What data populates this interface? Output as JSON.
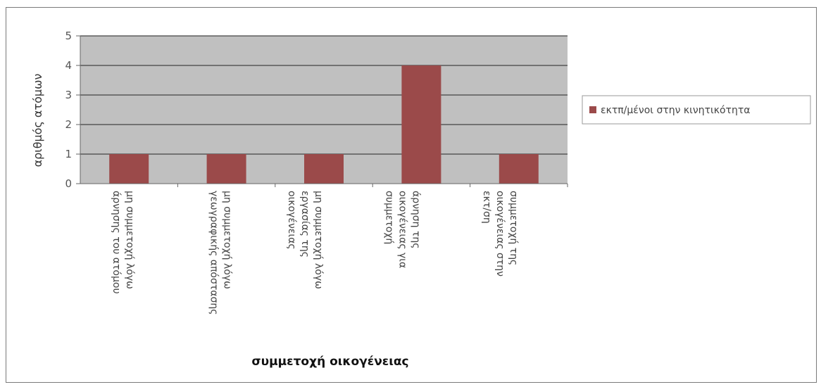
{
  "chart_data": {
    "type": "bar",
    "categories": [
      [
        "μη συμμετοχή λόγω",
        "άρνησης του ατόμου"
      ],
      [
        "μη συμμετοχή λόγω",
        "γεωγραφικής απόστασης"
      ],
      [
        "μη συμμετοχή λόγω",
        "εργασίας της",
        "οικογένειας"
      ],
      [
        "άρνηση της",
        "οικογένειας για",
        "συμμετοχή"
      ],
      [
        "συμμετοχή της",
        "οικογένειας στην",
        "εκτ/ση"
      ]
    ],
    "series": [
      {
        "name": "εκτπ/μένοι στην κινητικότητα",
        "values": [
          1,
          1,
          1,
          4,
          1
        ],
        "color": "#9b4a4a"
      }
    ],
    "ylabel": "αριθμός ατόμων",
    "xlabel": "συμμετοχή οικογένειας",
    "ylim": [
      0,
      5
    ],
    "yticks": [
      0,
      1,
      2,
      3,
      4,
      5
    ],
    "grid": true,
    "plot_background": "#c0c0c0",
    "legend_position": "right"
  }
}
